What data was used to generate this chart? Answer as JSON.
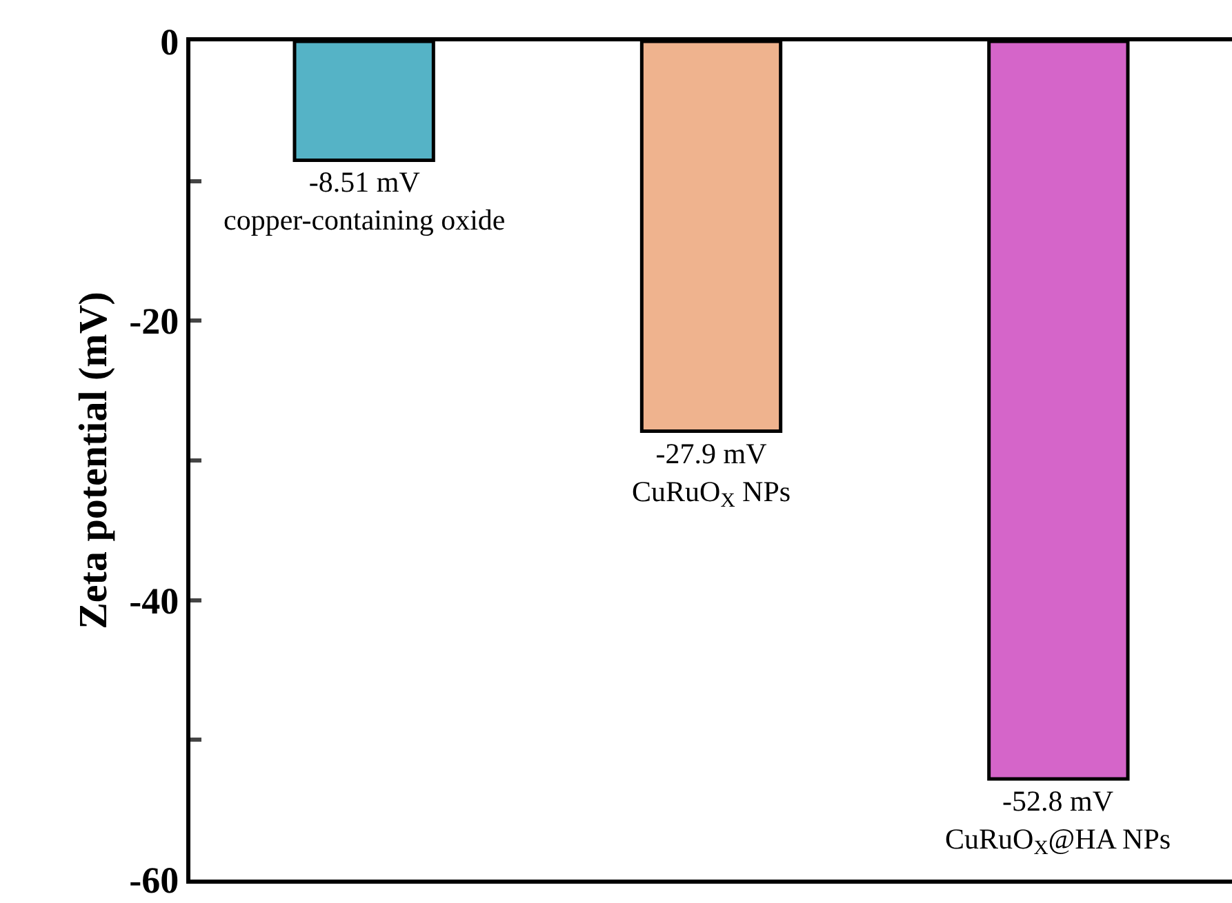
{
  "chart_data": {
    "type": "bar",
    "ylabel": "Zeta potential (mV)",
    "categories": [
      "copper-containing oxide",
      "CuRuO$_{X}$ NPs",
      "CuRuO$_{X}$@HA NPs"
    ],
    "values": [
      -8.51,
      -27.9,
      -52.8
    ],
    "value_labels": [
      "-8.51 mV",
      "-27.9 mV",
      "-52.8 mV"
    ],
    "colors": [
      "#55b3c6",
      "#efb38e",
      "#d565c9"
    ],
    "ylim": [
      -60,
      0
    ],
    "yticks": [
      0,
      {
        "value": -10,
        "label": null
      },
      -20,
      {
        "value": -30,
        "label": null
      },
      -40,
      {
        "value": -50,
        "label": null
      },
      -60
    ],
    "tick_labels": "y",
    "legend": false
  }
}
